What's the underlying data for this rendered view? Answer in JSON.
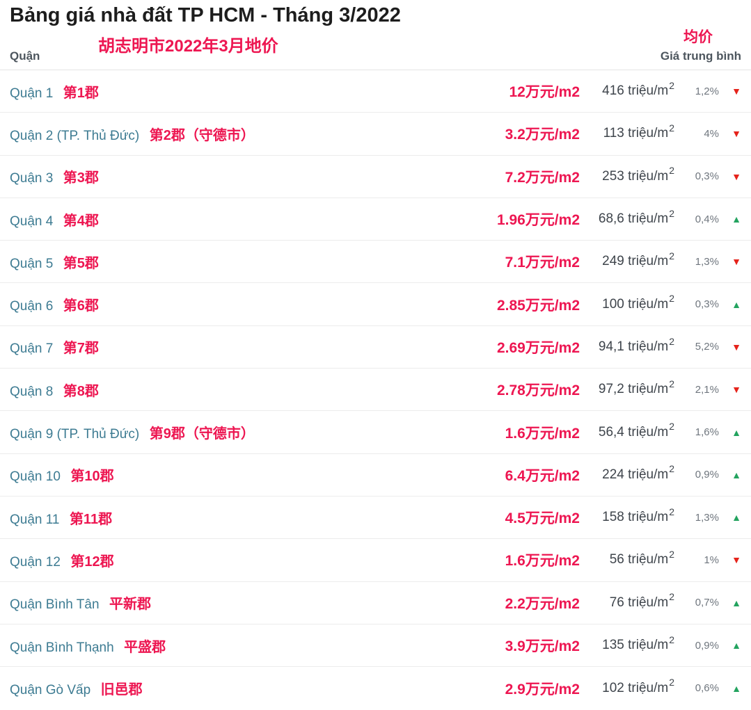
{
  "header": {
    "title": "Bảng giá nhà đất TP HCM - Tháng 3/2022",
    "title_cn": "胡志明市2022年3月地价",
    "col_district": "Quận",
    "col_price": "Giá trung bình",
    "col_price_cn": "均价"
  },
  "units": {
    "sup": "2"
  },
  "arrows": {
    "down": "▼",
    "up": "▲"
  },
  "colors": {
    "accent_red": "#ed1651",
    "district_link": "#3d7b92",
    "price_dark": "#3e444b",
    "percent_gray": "#6f767e",
    "arrow_down": "#e5231b",
    "arrow_up": "#23a35f",
    "header_gray": "#4d565e",
    "divider": "#ececec"
  },
  "rows": [
    {
      "district": "Quận 1",
      "district_cn": "第1郡",
      "price_cny": "12万元/m2",
      "price_vnd": "416 triệu/m",
      "change": "1,2%",
      "direction": "down"
    },
    {
      "district": "Quận 2 (TP. Thủ Đức)",
      "district_cn": "第2郡（守德市）",
      "price_cny": "3.2万元/m2",
      "price_vnd": "113 triệu/m",
      "change": "4%",
      "direction": "down"
    },
    {
      "district": "Quận 3",
      "district_cn": "第3郡",
      "price_cny": "7.2万元/m2",
      "price_vnd": "253 triệu/m",
      "change": "0,3%",
      "direction": "down"
    },
    {
      "district": "Quận 4",
      "district_cn": "第4郡",
      "price_cny": "1.96万元/m2",
      "price_vnd": "68,6 triệu/m",
      "change": "0,4%",
      "direction": "up"
    },
    {
      "district": "Quận 5",
      "district_cn": "第5郡",
      "price_cny": "7.1万元/m2",
      "price_vnd": "249 triệu/m",
      "change": "1,3%",
      "direction": "down"
    },
    {
      "district": "Quận 6",
      "district_cn": "第6郡",
      "price_cny": "2.85万元/m2",
      "price_vnd": "100 triệu/m",
      "change": "0,3%",
      "direction": "up"
    },
    {
      "district": "Quận 7",
      "district_cn": "第7郡",
      "price_cny": "2.69万元/m2",
      "price_vnd": "94,1 triệu/m",
      "change": "5,2%",
      "direction": "down"
    },
    {
      "district": "Quận 8",
      "district_cn": "第8郡",
      "price_cny": "2.78万元/m2",
      "price_vnd": "97,2 triệu/m",
      "change": "2,1%",
      "direction": "down"
    },
    {
      "district": "Quận 9 (TP. Thủ Đức)",
      "district_cn": "第9郡（守德市）",
      "price_cny": "1.6万元/m2",
      "price_vnd": "56,4 triệu/m",
      "change": "1,6%",
      "direction": "up"
    },
    {
      "district": "Quận 10",
      "district_cn": "第10郡",
      "price_cny": "6.4万元/m2",
      "price_vnd": "224 triệu/m",
      "change": "0,9%",
      "direction": "up"
    },
    {
      "district": "Quận 11",
      "district_cn": "第11郡",
      "price_cny": "4.5万元/m2",
      "price_vnd": "158 triệu/m",
      "change": "1,3%",
      "direction": "up"
    },
    {
      "district": "Quận 12",
      "district_cn": "第12郡",
      "price_cny": "1.6万元/m2",
      "price_vnd": "56 triệu/m",
      "change": "1%",
      "direction": "down"
    },
    {
      "district": "Quận Bình Tân",
      "district_cn": "平新郡",
      "price_cny": "2.2万元/m2",
      "price_vnd": "76 triệu/m",
      "change": "0,7%",
      "direction": "up"
    },
    {
      "district": "Quận Bình Thạnh",
      "district_cn": "平盛郡",
      "price_cny": "3.9万元/m2",
      "price_vnd": "135 triệu/m",
      "change": "0,9%",
      "direction": "up"
    },
    {
      "district": "Quận Gò Vấp",
      "district_cn": "旧邑郡",
      "price_cny": "2.9万元/m2",
      "price_vnd": "102 triệu/m",
      "change": "0,6%",
      "direction": "up"
    }
  ]
}
